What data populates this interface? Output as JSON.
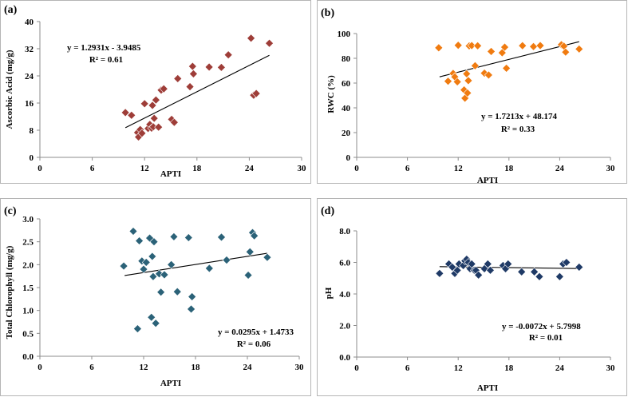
{
  "chart_data": [
    {
      "type": "scatter",
      "panel_label": "(a)",
      "xlabel": "APTI",
      "ylabel": "Ascorbic Acid (mg/g)",
      "xlim": [
        0,
        30
      ],
      "ylim": [
        0,
        40
      ],
      "xticks": [
        "0",
        "6",
        "12",
        "18",
        "24",
        "30"
      ],
      "yticks": [
        "0",
        "8",
        "16",
        "24",
        "32",
        "40"
      ],
      "marker_color": "#9e3d38",
      "equation": "y = 1.2931x - 3.9485",
      "r2": "R² = 0.61",
      "trend": {
        "slope": 1.2931,
        "intercept": -3.9485,
        "x_start": 9.8,
        "x_end": 26.3
      },
      "x": [
        9.8,
        10.5,
        11.2,
        11.3,
        11.5,
        11.7,
        12.0,
        12.4,
        12.6,
        12.8,
        12.9,
        13.0,
        13.1,
        13.3,
        13.6,
        13.9,
        14.2,
        15.1,
        15.4,
        15.8,
        17.2,
        17.5,
        17.6,
        19.4,
        20.8,
        21.6,
        24.2,
        24.5,
        24.8,
        26.3
      ],
      "y": [
        13.2,
        12.4,
        7.3,
        6.0,
        8.2,
        7.1,
        15.8,
        8.5,
        9.7,
        8.6,
        15.3,
        9.0,
        11.5,
        16.9,
        8.9,
        19.8,
        20.2,
        11.2,
        10.3,
        23.2,
        20.8,
        26.8,
        24.6,
        26.6,
        26.5,
        30.2,
        35.1,
        18.3,
        18.8,
        33.6
      ]
    },
    {
      "type": "scatter",
      "panel_label": "(b)",
      "xlabel": "APTI",
      "ylabel": "RWC (%)",
      "xlim": [
        0,
        30
      ],
      "ylim": [
        0,
        100
      ],
      "xticks": [
        "0",
        "6",
        "12",
        "18",
        "24",
        "30"
      ],
      "yticks": [
        "0",
        "20",
        "40",
        "60",
        "80",
        "100"
      ],
      "marker_color": "#f07b10",
      "equation": "y = 1.7213x + 48.174",
      "r2": "R² = 0.33",
      "trend": {
        "slope": 1.7213,
        "intercept": 48.174,
        "x_start": 9.8,
        "x_end": 26.3
      },
      "x": [
        9.7,
        10.8,
        11.4,
        11.6,
        11.9,
        12.0,
        12.7,
        12.8,
        13.0,
        13.1,
        13.2,
        13.3,
        13.6,
        14.0,
        14.3,
        15.1,
        15.6,
        15.9,
        17.2,
        17.5,
        17.7,
        19.6,
        20.9,
        21.7,
        24.2,
        24.5,
        24.7,
        26.3
      ],
      "y": [
        88.5,
        61.5,
        67.8,
        65.0,
        61.0,
        90.5,
        54.5,
        47.8,
        67.5,
        52.0,
        62.0,
        90.0,
        90.3,
        74.0,
        90.1,
        68.0,
        66.5,
        85.5,
        84.5,
        89.0,
        72.0,
        90.2,
        89.5,
        90.3,
        91.0,
        89.8,
        85.0,
        87.5
      ]
    },
    {
      "type": "scatter",
      "panel_label": "(c)",
      "xlabel": "APTI",
      "ylabel": "Total Chlorophyll (mg/g)",
      "xlim": [
        0,
        30
      ],
      "ylim": [
        0.0,
        3.0
      ],
      "xticks": [
        "0",
        "6",
        "12",
        "18",
        "24",
        "30"
      ],
      "yticks": [
        "0.0",
        "0.5",
        "1.0",
        "1.5",
        "2.0",
        "2.5",
        "3.0"
      ],
      "marker_color": "#2b6278",
      "equation": "y = 0.0295x + 1.4733",
      "r2": "R² = 0.06",
      "trend": {
        "slope": 0.0295,
        "intercept": 1.4733,
        "x_start": 9.8,
        "x_end": 26.3
      },
      "x": [
        9.7,
        10.8,
        11.3,
        11.5,
        11.8,
        12.0,
        12.3,
        12.7,
        12.9,
        13.0,
        13.1,
        13.2,
        13.4,
        13.8,
        14.0,
        14.4,
        15.2,
        15.5,
        15.9,
        17.2,
        17.6,
        17.5,
        19.6,
        21.0,
        21.6,
        24.1,
        24.3,
        24.6,
        24.8,
        26.3
      ],
      "y": [
        1.97,
        2.73,
        0.6,
        2.52,
        2.08,
        1.9,
        2.05,
        2.58,
        0.85,
        2.18,
        1.74,
        2.5,
        0.72,
        1.8,
        1.4,
        1.78,
        2.0,
        2.61,
        1.41,
        2.59,
        1.3,
        1.03,
        1.92,
        2.6,
        2.1,
        1.77,
        2.28,
        2.7,
        2.63,
        2.16
      ]
    },
    {
      "type": "scatter",
      "panel_label": "(d)",
      "xlabel": "APTI",
      "ylabel": "pH",
      "xlim": [
        0,
        30
      ],
      "ylim": [
        0.0,
        8.0
      ],
      "xticks": [
        "0",
        "6",
        "12",
        "18",
        "24",
        "30"
      ],
      "yticks": [
        "0.0",
        "2.0",
        "4.0",
        "6.0",
        "8.0"
      ],
      "marker_color": "#1f3a66",
      "equation": "y = -0.0072x + 5.7998",
      "r2": "R² = 0.01",
      "trend": {
        "slope": -0.0072,
        "intercept": 5.7998,
        "x_start": 9.8,
        "x_end": 26.3
      },
      "x": [
        9.8,
        10.9,
        11.3,
        11.6,
        11.9,
        12.1,
        12.6,
        12.8,
        13.0,
        13.2,
        13.4,
        13.6,
        13.9,
        14.1,
        14.4,
        15.1,
        15.5,
        15.8,
        17.3,
        17.6,
        17.9,
        19.5,
        21.0,
        21.6,
        24.0,
        24.4,
        24.8,
        26.3
      ],
      "y": [
        5.3,
        5.9,
        5.7,
        5.3,
        5.5,
        5.9,
        5.8,
        6.1,
        6.2,
        6.0,
        5.6,
        5.9,
        5.5,
        5.5,
        5.2,
        5.6,
        5.9,
        5.5,
        5.8,
        5.6,
        5.9,
        5.4,
        5.4,
        5.1,
        5.1,
        5.9,
        6.0,
        5.7
      ]
    }
  ]
}
